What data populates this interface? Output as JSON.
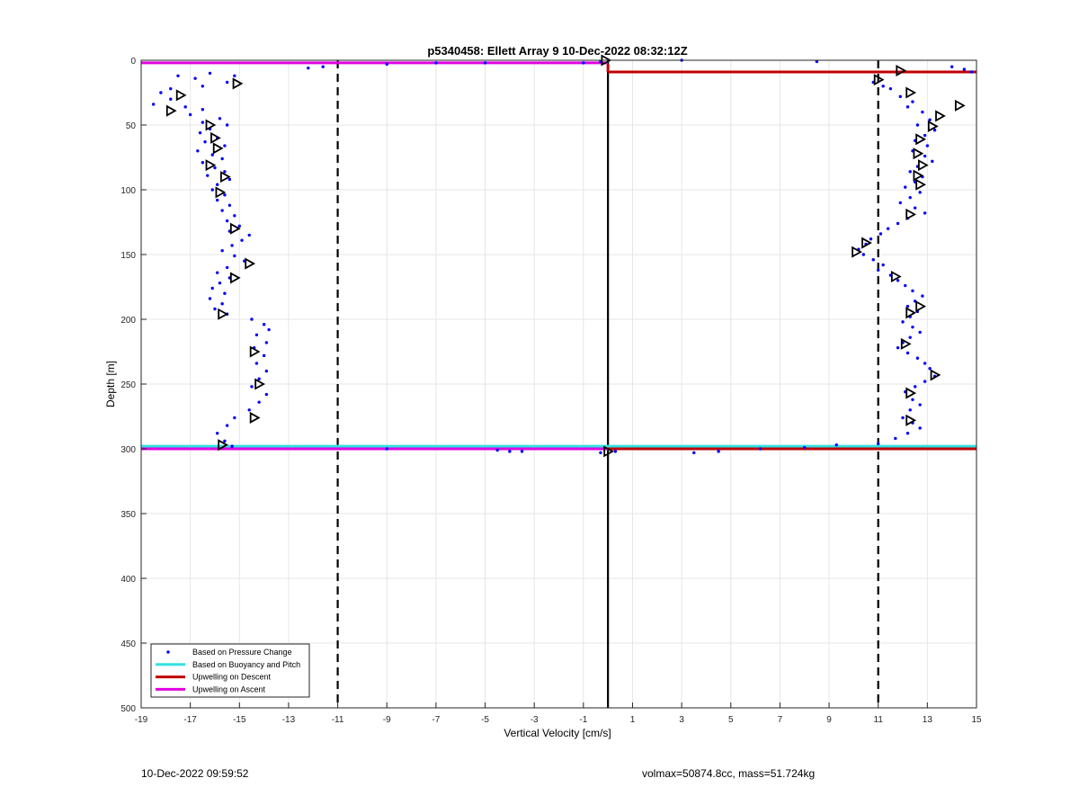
{
  "footer": {
    "left": "10-Dec-2022 09:59:52",
    "right": "volmax=50874.8cc, mass=51.724kg"
  },
  "chart_data": {
    "type": "scatter",
    "title": "p5340458: Ellett Array 9 10-Dec-2022 08:32:12Z",
    "xlabel": "Vertical Velocity [cm/s]",
    "ylabel": "Depth [m]",
    "xlim": [
      -19,
      15
    ],
    "ylim": [
      0,
      500
    ],
    "y_reversed": true,
    "grid": true,
    "xticks": [
      -19,
      -17,
      -15,
      -13,
      -11,
      -9,
      -7,
      -5,
      -3,
      -1,
      1,
      3,
      5,
      7,
      9,
      11,
      13,
      15
    ],
    "yticks": [
      0,
      50,
      100,
      150,
      200,
      250,
      300,
      350,
      400,
      450,
      500
    ],
    "legend_position": "bottom-left",
    "legend": [
      {
        "label": "Based on Pressure Change",
        "color": "#0000ff",
        "kind": "dot"
      },
      {
        "label": "Based on Buoyancy and Pitch",
        "color": "#33e0e0",
        "kind": "line"
      },
      {
        "label": "Upwelling on Descent",
        "color": "#c00000",
        "kind": "line"
      },
      {
        "label": "Upwelling on Ascent",
        "color": "#e000e0",
        "kind": "line"
      }
    ],
    "reference_lines": {
      "dashed_x": [
        -11,
        11
      ],
      "solid_x": 0
    },
    "series": [
      {
        "name": "Based on Pressure Change",
        "color": "#0000ff",
        "points_descent_side": [
          [
            -17.5,
            12
          ],
          [
            -16.8,
            14
          ],
          [
            -16.2,
            10
          ],
          [
            -15.2,
            12
          ],
          [
            -15.5,
            17
          ],
          [
            -16.5,
            20
          ],
          [
            -17.8,
            22
          ],
          [
            -18.2,
            25
          ],
          [
            -17.8,
            30
          ],
          [
            -18.5,
            34
          ],
          [
            -17.2,
            36
          ],
          [
            -16.5,
            38
          ],
          [
            -17,
            42
          ],
          [
            -15.8,
            45
          ],
          [
            -16.5,
            48
          ],
          [
            -15.5,
            50
          ],
          [
            -16.2,
            53
          ],
          [
            -16.6,
            56
          ],
          [
            -15.9,
            60
          ],
          [
            -16.4,
            63
          ],
          [
            -15.6,
            66
          ],
          [
            -16.7,
            70
          ],
          [
            -16.1,
            73
          ],
          [
            -15.7,
            76
          ],
          [
            -16.5,
            79
          ],
          [
            -16.0,
            83
          ],
          [
            -15.6,
            86
          ],
          [
            -16.3,
            89
          ],
          [
            -15.4,
            92
          ],
          [
            -15.9,
            96
          ],
          [
            -16.1,
            100
          ],
          [
            -15.6,
            104
          ],
          [
            -15.9,
            108
          ],
          [
            -15.4,
            112
          ],
          [
            -15.7,
            116
          ],
          [
            -15.2,
            120
          ],
          [
            -15.5,
            124
          ],
          [
            -15.0,
            128
          ],
          [
            -15.4,
            132
          ],
          [
            -14.6,
            135
          ],
          [
            -14.9,
            139
          ],
          [
            -15.3,
            143
          ],
          [
            -15.7,
            147
          ],
          [
            -15.2,
            151
          ],
          [
            -14.8,
            155
          ],
          [
            -15.5,
            160
          ],
          [
            -15.9,
            164
          ],
          [
            -15.4,
            168
          ],
          [
            -15.8,
            172
          ],
          [
            -16.1,
            176
          ],
          [
            -15.6,
            180
          ],
          [
            -16.2,
            184
          ],
          [
            -15.7,
            188
          ],
          [
            -16.0,
            192
          ],
          [
            -15.5,
            196
          ],
          [
            -14.5,
            200
          ],
          [
            -14.0,
            204
          ],
          [
            -13.8,
            208
          ],
          [
            -14.3,
            212
          ],
          [
            -13.9,
            218
          ],
          [
            -14.4,
            222
          ],
          [
            -14.0,
            228
          ],
          [
            -14.3,
            234
          ],
          [
            -13.9,
            240
          ],
          [
            -14.2,
            246
          ],
          [
            -14.5,
            252
          ],
          [
            -13.9,
            258
          ],
          [
            -14.2,
            264
          ],
          [
            -14.6,
            270
          ],
          [
            -15.2,
            276
          ],
          [
            -15.5,
            282
          ],
          [
            -15.9,
            288
          ],
          [
            -15.6,
            294
          ],
          [
            -15.3,
            298
          ],
          [
            -12.2,
            6
          ],
          [
            -11.6,
            5
          ],
          [
            -9,
            3
          ],
          [
            -7,
            2
          ],
          [
            -5,
            2
          ],
          [
            -1,
            2
          ],
          [
            -0.3,
            1
          ],
          [
            -9,
            300
          ],
          [
            -4.5,
            301
          ],
          [
            -4,
            302
          ],
          [
            -3.5,
            302
          ],
          [
            -0.3,
            303
          ]
        ],
        "points_ascent_side": [
          [
            11.2,
            20
          ],
          [
            10.8,
            17
          ],
          [
            11.5,
            22
          ],
          [
            11.9,
            28
          ],
          [
            12.4,
            32
          ],
          [
            12.2,
            36
          ],
          [
            12.8,
            40
          ],
          [
            13.1,
            46
          ],
          [
            12.6,
            50
          ],
          [
            13.3,
            54
          ],
          [
            12.9,
            58
          ],
          [
            12.5,
            62
          ],
          [
            13.0,
            66
          ],
          [
            12.4,
            70
          ],
          [
            12.9,
            74
          ],
          [
            13.2,
            78
          ],
          [
            12.6,
            82
          ],
          [
            12.3,
            86
          ],
          [
            12.8,
            90
          ],
          [
            12.5,
            94
          ],
          [
            12.1,
            98
          ],
          [
            12.7,
            102
          ],
          [
            12.3,
            106
          ],
          [
            11.9,
            110
          ],
          [
            12.5,
            114
          ],
          [
            12.9,
            118
          ],
          [
            12.2,
            122
          ],
          [
            11.8,
            126
          ],
          [
            11.4,
            130
          ],
          [
            11.1,
            134
          ],
          [
            10.7,
            138
          ],
          [
            10.5,
            142
          ],
          [
            10.2,
            146
          ],
          [
            10.4,
            150
          ],
          [
            10.8,
            154
          ],
          [
            11.2,
            158
          ],
          [
            11.0,
            162
          ],
          [
            11.5,
            166
          ],
          [
            11.8,
            170
          ],
          [
            12.1,
            174
          ],
          [
            12.4,
            178
          ],
          [
            12.8,
            182
          ],
          [
            12.5,
            186
          ],
          [
            12.2,
            190
          ],
          [
            12.6,
            194
          ],
          [
            12.3,
            198
          ],
          [
            12.0,
            202
          ],
          [
            12.4,
            206
          ],
          [
            12.7,
            210
          ],
          [
            12.3,
            214
          ],
          [
            12.0,
            218
          ],
          [
            11.8,
            222
          ],
          [
            12.2,
            226
          ],
          [
            12.6,
            230
          ],
          [
            12.9,
            234
          ],
          [
            13.1,
            238
          ],
          [
            13.3,
            244
          ],
          [
            12.9,
            248
          ],
          [
            12.5,
            252
          ],
          [
            12.1,
            256
          ],
          [
            12.4,
            262
          ],
          [
            12.7,
            266
          ],
          [
            12.3,
            270
          ],
          [
            12.0,
            276
          ],
          [
            12.4,
            280
          ],
          [
            12.7,
            284
          ],
          [
            12.2,
            288
          ],
          [
            11.7,
            292
          ],
          [
            11.0,
            296
          ],
          [
            14.0,
            5
          ],
          [
            14.5,
            7
          ],
          [
            14.8,
            9
          ],
          [
            8.5,
            1
          ],
          [
            3,
            0
          ],
          [
            9.3,
            297
          ],
          [
            8.0,
            299
          ],
          [
            6.2,
            300
          ],
          [
            4.5,
            302
          ],
          [
            3.5,
            303
          ],
          [
            0.3,
            302
          ]
        ]
      }
    ],
    "triangles": [
      [
        -17.4,
        27
      ],
      [
        -15.1,
        18
      ],
      [
        -17.8,
        39
      ],
      [
        -16.2,
        50
      ],
      [
        -16.0,
        60
      ],
      [
        -15.9,
        68
      ],
      [
        -16.2,
        81
      ],
      [
        -15.6,
        90
      ],
      [
        -15.8,
        102
      ],
      [
        -15.2,
        130
      ],
      [
        -14.6,
        157
      ],
      [
        -15.2,
        168
      ],
      [
        -15.7,
        196
      ],
      [
        -14.4,
        225
      ],
      [
        -14.2,
        250
      ],
      [
        -14.4,
        276
      ],
      [
        -15.7,
        297
      ],
      [
        11.9,
        8
      ],
      [
        11.0,
        15
      ],
      [
        12.3,
        25
      ],
      [
        14.3,
        35
      ],
      [
        13.5,
        43
      ],
      [
        13.2,
        51
      ],
      [
        12.7,
        61
      ],
      [
        12.6,
        72
      ],
      [
        12.8,
        81
      ],
      [
        12.6,
        89
      ],
      [
        12.7,
        96
      ],
      [
        12.3,
        119
      ],
      [
        10.5,
        141
      ],
      [
        10.1,
        148
      ],
      [
        11.7,
        167
      ],
      [
        12.7,
        190
      ],
      [
        12.3,
        195
      ],
      [
        12.1,
        219
      ],
      [
        13.3,
        243
      ],
      [
        12.3,
        257
      ],
      [
        12.3,
        278
      ],
      [
        -0.1,
        0
      ],
      [
        0.0,
        302
      ]
    ],
    "lines": [
      {
        "name": "Based on Buoyancy and Pitch",
        "color": "#33e0e0",
        "segments": [
          [
            [
              -19,
              298
            ],
            [
              15,
              298
            ]
          ]
        ]
      },
      {
        "name": "Upwelling on Descent",
        "color": "#c00000",
        "segments": [
          [
            [
              0,
              9
            ],
            [
              15,
              9
            ]
          ],
          [
            [
              0,
              3
            ],
            [
              0,
              9
            ]
          ],
          [
            [
              0,
              300
            ],
            [
              15,
              300
            ]
          ]
        ]
      },
      {
        "name": "Upwelling on Ascent",
        "color": "#e000e0",
        "segments": [
          [
            [
              -19,
              2
            ],
            [
              0,
              2
            ]
          ],
          [
            [
              -19,
              300
            ],
            [
              0,
              300
            ]
          ]
        ]
      }
    ]
  }
}
